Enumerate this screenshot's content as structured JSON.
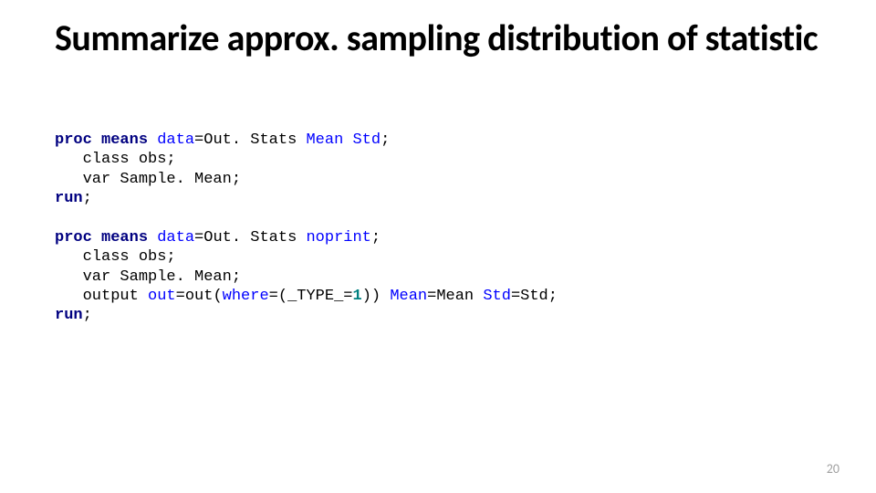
{
  "slide": {
    "title": "Summarize approx. sampling distribution of statistic",
    "title_fontsize": 40,
    "title_weight": 700,
    "title_color": "#000000",
    "background_color": "#ffffff",
    "page_number": "20",
    "page_number_color": "#a0a0a0",
    "page_number_fontsize": 14
  },
  "code": {
    "font_family": "Lucida Console",
    "font_size": 17,
    "colors": {
      "keyword": "#000080",
      "option": "#0000ff",
      "number": "#008080",
      "default": "#000000"
    },
    "block1": {
      "l1_kw1": "proc",
      "l1_kw2": "means",
      "l1_opt1": "data",
      "l1_txt1": "=Out. Stats ",
      "l1_opt2": "Mean",
      "l1_sp1": " ",
      "l1_opt3": "Std",
      "l1_txt2": ";",
      "l2": "   class obs;",
      "l3": "   var Sample. Mean;",
      "l4_kw": "run",
      "l4_txt": ";"
    },
    "block2": {
      "l1_kw1": "proc",
      "l1_kw2": "means",
      "l1_opt1": "data",
      "l1_txt1": "=Out. Stats ",
      "l1_opt2": "noprint",
      "l1_txt2": ";",
      "l2": "   class obs;",
      "l3": "   var Sample. Mean;",
      "l4_txt1": "   output ",
      "l4_opt1": "out",
      "l4_txt2": "=out(",
      "l4_opt2": "where",
      "l4_txt3": "=(_TYPE_=",
      "l4_num": "1",
      "l4_txt4": ")) ",
      "l4_opt3": "Mean",
      "l4_txt5": "=Mean ",
      "l4_opt4": "Std",
      "l4_txt6": "=Std;",
      "l5_kw": "run",
      "l5_txt": ";"
    }
  }
}
